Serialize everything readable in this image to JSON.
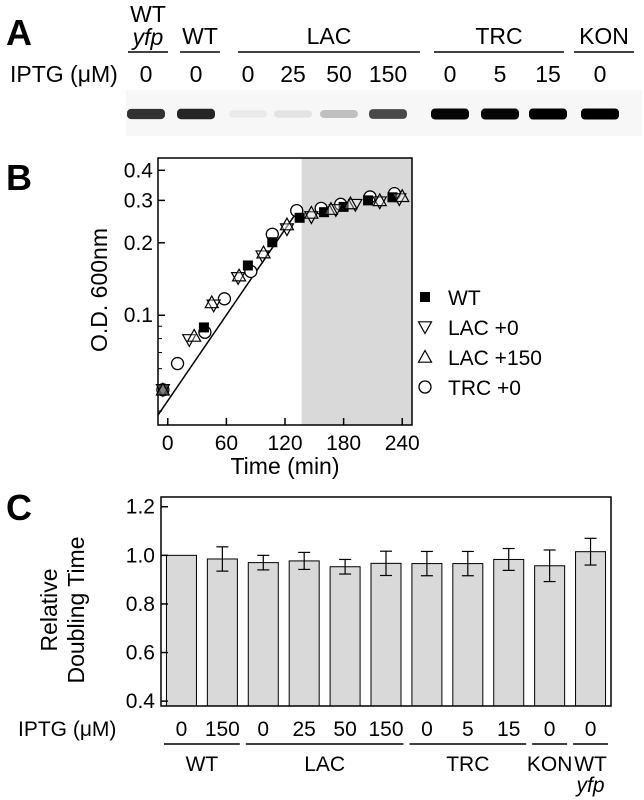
{
  "panels": {
    "a": {
      "letter": "A",
      "iptg_label": "IPTG (μM)",
      "groups": [
        {
          "label": "WT",
          "sub": "yfp"
        },
        {
          "label": "WT",
          "sub": ""
        },
        {
          "label": "LAC",
          "sub": ""
        },
        {
          "label": "TRC",
          "sub": ""
        },
        {
          "label": "KON",
          "sub": ""
        }
      ],
      "lanes": [
        {
          "group": 0,
          "iptg": "0",
          "intensity": 0.8
        },
        {
          "group": 1,
          "iptg": "0",
          "intensity": 0.85
        },
        {
          "group": 2,
          "iptg": "0",
          "intensity": 0.05
        },
        {
          "group": 2,
          "iptg": "25",
          "intensity": 0.08
        },
        {
          "group": 2,
          "iptg": "50",
          "intensity": 0.22
        },
        {
          "group": 2,
          "iptg": "150",
          "intensity": 0.7
        },
        {
          "group": 3,
          "iptg": "0",
          "intensity": 0.98
        },
        {
          "group": 3,
          "iptg": "5",
          "intensity": 0.98
        },
        {
          "group": 3,
          "iptg": "15",
          "intensity": 1.0
        },
        {
          "group": 4,
          "iptg": "0",
          "intensity": 1.0
        }
      ]
    },
    "b": {
      "letter": "B"
    },
    "c": {
      "letter": "C",
      "iptg_label": "IPTG (μM)"
    }
  },
  "chart_data": [
    {
      "type": "scatter",
      "panel": "B",
      "xlabel": "Time (min)",
      "ylabel": "O.D. 600nm",
      "xlim": [
        -10,
        250
      ],
      "ylim": [
        0.035,
        0.45
      ],
      "yscale": "log",
      "xticks": [
        0,
        60,
        120,
        180,
        240
      ],
      "yticks": [
        0.1,
        0.2,
        0.3,
        0.4
      ],
      "ytick_labels": [
        "0.1",
        "0.2",
        "0.3",
        "0.4"
      ],
      "shaded_region_x": [
        137,
        250
      ],
      "shaded_color": "#d9d9d9",
      "legend_position": "lower-right",
      "fit_line": {
        "x": [
          -10,
          132
        ],
        "y": [
          0.0385,
          0.268
        ]
      },
      "series": [
        {
          "name": "WT",
          "marker": "square-filled",
          "x": [
            -5,
            37,
            82,
            107,
            135,
            160,
            180,
            205,
            230
          ],
          "y": [
            0.049,
            0.089,
            0.161,
            0.201,
            0.254,
            0.268,
            0.282,
            0.3,
            0.309
          ]
        },
        {
          "name": "LAC +0",
          "marker": "triangle-down-open",
          "x": [
            -5,
            22,
            47,
            72,
            97,
            122,
            147,
            172,
            192,
            217,
            237
          ],
          "y": [
            0.049,
            0.079,
            0.11,
            0.143,
            0.176,
            0.228,
            0.256,
            0.274,
            0.288,
            0.295,
            0.304
          ]
        },
        {
          "name": "LAC +150",
          "marker": "triangle-up-open",
          "x": [
            -5,
            27,
            45,
            73,
            98,
            122,
            147,
            167,
            187,
            217,
            240
          ],
          "y": [
            0.049,
            0.082,
            0.113,
            0.146,
            0.182,
            0.238,
            0.266,
            0.276,
            0.291,
            0.3,
            0.312
          ]
        },
        {
          "name": "TRC +0",
          "marker": "circle-open",
          "x": [
            -5,
            10,
            38,
            58,
            85,
            107,
            132,
            157,
            177,
            207,
            232
          ],
          "y": [
            0.049,
            0.063,
            0.085,
            0.117,
            0.152,
            0.217,
            0.272,
            0.278,
            0.289,
            0.31,
            0.32
          ]
        }
      ]
    },
    {
      "type": "bar",
      "panel": "C",
      "ylabel_lines": [
        "Relative",
        "Doubling Time"
      ],
      "ylim": [
        0.38,
        1.24
      ],
      "yticks": [
        0.4,
        0.6,
        0.8,
        1.0,
        1.2
      ],
      "ytick_labels": [
        "0.4",
        "0.6",
        "0.8",
        "1.0",
        "1.2"
      ],
      "bar_color": "#d9d9d9",
      "categories": [
        "0",
        "150",
        "0",
        "25",
        "50",
        "150",
        "0",
        "5",
        "15",
        "0",
        "0"
      ],
      "values": [
        1.0,
        0.985,
        0.97,
        0.977,
        0.953,
        0.967,
        0.966,
        0.966,
        0.983,
        0.957,
        1.015
      ],
      "errors": [
        0,
        0.05,
        0.03,
        0.035,
        0.03,
        0.05,
        0.05,
        0.05,
        0.045,
        0.065,
        0.055
      ],
      "groups": [
        {
          "label": "WT",
          "sub": "",
          "start": 0,
          "end": 1
        },
        {
          "label": "LAC",
          "sub": "",
          "start": 2,
          "end": 5
        },
        {
          "label": "TRC",
          "sub": "",
          "start": 6,
          "end": 8
        },
        {
          "label": "KON",
          "sub": "",
          "start": 9,
          "end": 9
        },
        {
          "label": "WT",
          "sub": "yfp",
          "start": 10,
          "end": 10
        }
      ]
    }
  ]
}
